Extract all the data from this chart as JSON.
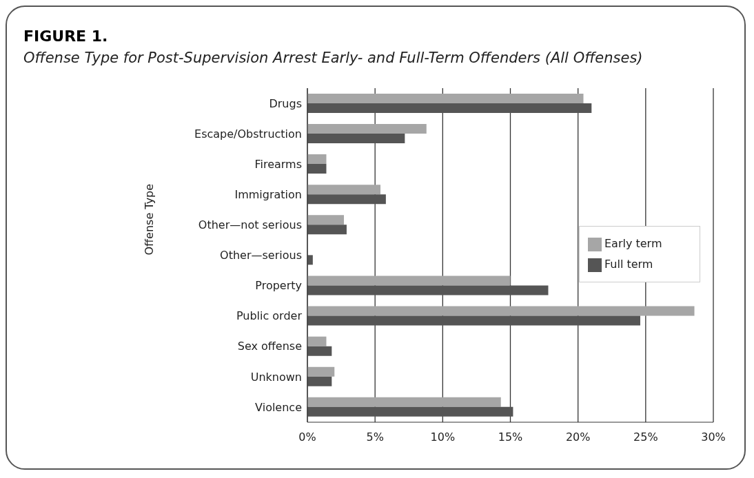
{
  "chart_data": {
    "type": "bar",
    "orientation": "horizontal",
    "title": "FIGURE 1.",
    "subtitle": "Offense Type for Post-Supervision Arrest Early- and Full-Term Offenders (All Offenses)",
    "ylabel": "Offense Type",
    "categories": [
      "Drugs",
      "Escape/Obstruction",
      "Firearms",
      "Immigration",
      "Other—not serious",
      "Other—serious",
      "Property",
      "Public order",
      "Sex offense",
      "Unknown",
      "Violence"
    ],
    "series": [
      {
        "name": "Early term",
        "color": "#a6a6a6",
        "values": [
          20.4,
          8.8,
          1.4,
          5.4,
          2.7,
          0,
          15.0,
          28.6,
          1.4,
          2.0,
          14.3
        ]
      },
      {
        "name": "Full term",
        "color": "#555555",
        "values": [
          21.0,
          7.2,
          1.4,
          5.8,
          2.9,
          0.4,
          17.8,
          24.6,
          1.8,
          1.8,
          15.2
        ]
      }
    ],
    "xlim": [
      0,
      30
    ],
    "xticks": [
      {
        "value": 0,
        "label": "0%"
      },
      {
        "value": 5,
        "label": "5%"
      },
      {
        "value": 10,
        "label": "10%"
      },
      {
        "value": 15,
        "label": "15%"
      },
      {
        "value": 20,
        "label": "20%"
      },
      {
        "value": 25,
        "label": "25%"
      },
      {
        "value": 30,
        "label": "30%"
      }
    ],
    "grid": "x",
    "legend": "right"
  }
}
